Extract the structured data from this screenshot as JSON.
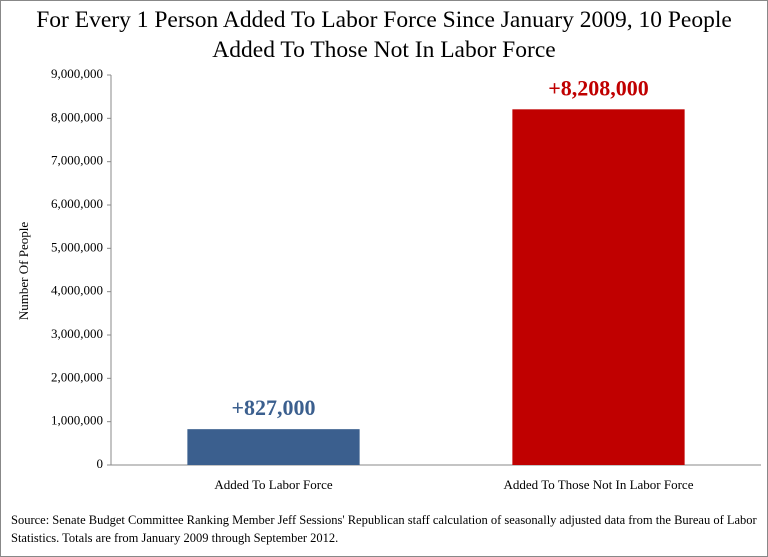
{
  "chart_data": {
    "type": "bar",
    "title": "For Every 1 Person Added To Labor Force Since January 2009, 10 People Added To Those Not In Labor Force",
    "y_label": "Number Of People",
    "categories": [
      "Added To Labor Force",
      "Added To Those Not In Labor Force"
    ],
    "values": [
      827000,
      8208000
    ],
    "value_labels": [
      "+827,000",
      "+8,208,000"
    ],
    "colors": [
      "#3b5f8e",
      "#c00000"
    ],
    "ylim": [
      0,
      9000000
    ],
    "yticks": [
      0,
      {
        "value": 1000000,
        "label": "1,000,000"
      },
      {
        "value": 2000000,
        "label": "2,000,000"
      },
      {
        "value": 3000000,
        "label": "3,000,000"
      },
      {
        "value": 4000000,
        "label": "4,000,000"
      },
      {
        "value": 5000000,
        "label": "5,000,000"
      },
      {
        "value": 6000000,
        "label": "6,000,000"
      },
      {
        "value": 7000000,
        "label": "7,000,000"
      },
      {
        "value": 8000000,
        "label": "8,000,000"
      },
      {
        "value": 9000000,
        "label": "9,000,000"
      }
    ],
    "grid": false,
    "source": "Source: Senate Budget Committee Ranking Member Jeff Sessions' Republican staff calculation of  seasonally adjusted data from the Bureau of Labor Statistics. Totals are from January 2009 through September 2012."
  }
}
